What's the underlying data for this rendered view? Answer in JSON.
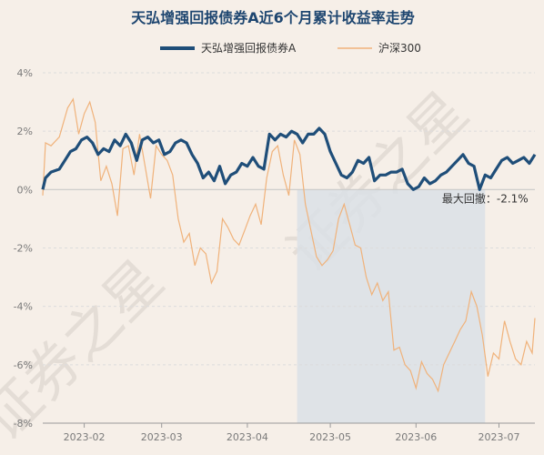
{
  "chart_data": {
    "type": "line",
    "title": "天弘增强回报债券A近6个月累计收益率走势",
    "watermark": "证券之星",
    "colors": {
      "fund": "#1f4e79",
      "index": "#f0b27a",
      "shade": "#dbe1e6",
      "background": "#f6efe8"
    },
    "ylim": [
      -8,
      4
    ],
    "yticks": [
      4,
      2,
      0,
      -2,
      -4,
      -6,
      -8
    ],
    "ytick_labels": [
      "4%",
      "2%",
      "0%",
      "-2%",
      "-4%",
      "-6%",
      "-8%"
    ],
    "xlim": [
      "2023-01-17",
      "2023-07-14"
    ],
    "xticks": [
      "2023-02-01",
      "2023-03-01",
      "2023-04-01",
      "2023-05-01",
      "2023-06-01",
      "2023-07-01"
    ],
    "xtick_labels": [
      "2023-02",
      "2023-03",
      "2023-04",
      "2023-05",
      "2023-06",
      "2023-07"
    ],
    "drawdown": {
      "label": "最大回撤：-2.1%",
      "start": "2023-04-19",
      "end": "2023-06-26"
    },
    "series": [
      {
        "name": "天弘增强回报债券A",
        "points": [
          [
            "2023-01-17",
            0.0
          ],
          [
            "2023-01-18",
            0.4
          ],
          [
            "2023-01-19",
            0.5
          ],
          [
            "2023-01-20",
            0.6
          ],
          [
            "2023-01-23",
            0.7
          ],
          [
            "2023-01-25",
            1.0
          ],
          [
            "2023-01-27",
            1.3
          ],
          [
            "2023-01-29",
            1.4
          ],
          [
            "2023-01-31",
            1.7
          ],
          [
            "2023-02-02",
            1.8
          ],
          [
            "2023-02-04",
            1.6
          ],
          [
            "2023-02-06",
            1.2
          ],
          [
            "2023-02-08",
            1.4
          ],
          [
            "2023-02-10",
            1.3
          ],
          [
            "2023-02-12",
            1.7
          ],
          [
            "2023-02-14",
            1.5
          ],
          [
            "2023-02-16",
            1.9
          ],
          [
            "2023-02-18",
            1.6
          ],
          [
            "2023-02-20",
            1.0
          ],
          [
            "2023-02-22",
            1.7
          ],
          [
            "2023-02-24",
            1.8
          ],
          [
            "2023-02-26",
            1.6
          ],
          [
            "2023-02-28",
            1.7
          ],
          [
            "2023-03-02",
            1.2
          ],
          [
            "2023-03-04",
            1.3
          ],
          [
            "2023-03-06",
            1.6
          ],
          [
            "2023-03-08",
            1.7
          ],
          [
            "2023-03-10",
            1.6
          ],
          [
            "2023-03-12",
            1.2
          ],
          [
            "2023-03-14",
            0.9
          ],
          [
            "2023-03-16",
            0.4
          ],
          [
            "2023-03-18",
            0.6
          ],
          [
            "2023-03-20",
            0.3
          ],
          [
            "2023-03-22",
            0.8
          ],
          [
            "2023-03-24",
            0.2
          ],
          [
            "2023-03-26",
            0.5
          ],
          [
            "2023-03-28",
            0.6
          ],
          [
            "2023-03-30",
            0.9
          ],
          [
            "2023-04-01",
            0.8
          ],
          [
            "2023-04-03",
            1.1
          ],
          [
            "2023-04-05",
            0.8
          ],
          [
            "2023-04-07",
            0.7
          ],
          [
            "2023-04-09",
            1.9
          ],
          [
            "2023-04-11",
            1.7
          ],
          [
            "2023-04-13",
            1.9
          ],
          [
            "2023-04-15",
            1.8
          ],
          [
            "2023-04-17",
            2.0
          ],
          [
            "2023-04-19",
            1.9
          ],
          [
            "2023-04-21",
            1.6
          ],
          [
            "2023-04-23",
            1.9
          ],
          [
            "2023-04-25",
            1.9
          ],
          [
            "2023-04-27",
            2.1
          ],
          [
            "2023-04-29",
            1.9
          ],
          [
            "2023-05-01",
            1.3
          ],
          [
            "2023-05-03",
            0.9
          ],
          [
            "2023-05-05",
            0.5
          ],
          [
            "2023-05-07",
            0.4
          ],
          [
            "2023-05-09",
            0.6
          ],
          [
            "2023-05-11",
            1.0
          ],
          [
            "2023-05-13",
            0.9
          ],
          [
            "2023-05-15",
            1.1
          ],
          [
            "2023-05-17",
            0.3
          ],
          [
            "2023-05-19",
            0.5
          ],
          [
            "2023-05-21",
            0.5
          ],
          [
            "2023-05-23",
            0.6
          ],
          [
            "2023-05-25",
            0.6
          ],
          [
            "2023-05-27",
            0.7
          ],
          [
            "2023-05-29",
            0.2
          ],
          [
            "2023-05-31",
            0.0
          ],
          [
            "2023-06-02",
            0.1
          ],
          [
            "2023-06-04",
            0.4
          ],
          [
            "2023-06-06",
            0.2
          ],
          [
            "2023-06-08",
            0.3
          ],
          [
            "2023-06-10",
            0.5
          ],
          [
            "2023-06-12",
            0.6
          ],
          [
            "2023-06-14",
            0.8
          ],
          [
            "2023-06-16",
            1.0
          ],
          [
            "2023-06-18",
            1.2
          ],
          [
            "2023-06-20",
            0.9
          ],
          [
            "2023-06-22",
            0.8
          ],
          [
            "2023-06-24",
            0.0
          ],
          [
            "2023-06-26",
            0.5
          ],
          [
            "2023-06-28",
            0.4
          ],
          [
            "2023-06-30",
            0.7
          ],
          [
            "2023-07-02",
            1.0
          ],
          [
            "2023-07-04",
            1.1
          ],
          [
            "2023-07-06",
            0.9
          ],
          [
            "2023-07-08",
            1.0
          ],
          [
            "2023-07-10",
            1.1
          ],
          [
            "2023-07-12",
            0.9
          ],
          [
            "2023-07-14",
            1.2
          ]
        ]
      },
      {
        "name": "沪深300",
        "points": [
          [
            "2023-01-17",
            -0.2
          ],
          [
            "2023-01-18",
            1.6
          ],
          [
            "2023-01-20",
            1.5
          ],
          [
            "2023-01-23",
            1.8
          ],
          [
            "2023-01-26",
            2.8
          ],
          [
            "2023-01-28",
            3.1
          ],
          [
            "2023-01-30",
            1.9
          ],
          [
            "2023-02-01",
            2.6
          ],
          [
            "2023-02-03",
            3.0
          ],
          [
            "2023-02-05",
            2.3
          ],
          [
            "2023-02-07",
            0.3
          ],
          [
            "2023-02-09",
            0.8
          ],
          [
            "2023-02-11",
            0.2
          ],
          [
            "2023-02-13",
            -0.9
          ],
          [
            "2023-02-15",
            1.4
          ],
          [
            "2023-02-17",
            1.5
          ],
          [
            "2023-02-19",
            0.5
          ],
          [
            "2023-02-21",
            1.9
          ],
          [
            "2023-02-23",
            0.8
          ],
          [
            "2023-02-25",
            -0.3
          ],
          [
            "2023-02-27",
            1.5
          ],
          [
            "2023-03-01",
            1.2
          ],
          [
            "2023-03-03",
            1.0
          ],
          [
            "2023-03-05",
            0.5
          ],
          [
            "2023-03-07",
            -1.0
          ],
          [
            "2023-03-09",
            -1.8
          ],
          [
            "2023-03-11",
            -1.5
          ],
          [
            "2023-03-13",
            -2.6
          ],
          [
            "2023-03-15",
            -2.0
          ],
          [
            "2023-03-17",
            -2.2
          ],
          [
            "2023-03-19",
            -3.2
          ],
          [
            "2023-03-21",
            -2.8
          ],
          [
            "2023-03-23",
            -1.0
          ],
          [
            "2023-03-25",
            -1.3
          ],
          [
            "2023-03-27",
            -1.7
          ],
          [
            "2023-03-29",
            -1.9
          ],
          [
            "2023-03-31",
            -1.4
          ],
          [
            "2023-04-02",
            -0.9
          ],
          [
            "2023-04-04",
            -0.5
          ],
          [
            "2023-04-06",
            -1.2
          ],
          [
            "2023-04-08",
            0.4
          ],
          [
            "2023-04-10",
            1.3
          ],
          [
            "2023-04-12",
            1.5
          ],
          [
            "2023-04-14",
            0.5
          ],
          [
            "2023-04-16",
            -0.2
          ],
          [
            "2023-04-18",
            1.7
          ],
          [
            "2023-04-20",
            1.2
          ],
          [
            "2023-04-22",
            -0.5
          ],
          [
            "2023-04-24",
            -1.4
          ],
          [
            "2023-04-26",
            -2.3
          ],
          [
            "2023-04-28",
            -2.6
          ],
          [
            "2023-04-30",
            -2.4
          ],
          [
            "2023-05-02",
            -2.1
          ],
          [
            "2023-05-04",
            -1.0
          ],
          [
            "2023-05-06",
            -0.5
          ],
          [
            "2023-05-08",
            -1.2
          ],
          [
            "2023-05-10",
            -1.9
          ],
          [
            "2023-05-12",
            -2.0
          ],
          [
            "2023-05-14",
            -3.0
          ],
          [
            "2023-05-16",
            -3.6
          ],
          [
            "2023-05-18",
            -3.2
          ],
          [
            "2023-05-20",
            -3.8
          ],
          [
            "2023-05-22",
            -3.5
          ],
          [
            "2023-05-24",
            -5.5
          ],
          [
            "2023-05-26",
            -5.4
          ],
          [
            "2023-05-28",
            -6.0
          ],
          [
            "2023-05-30",
            -6.2
          ],
          [
            "2023-06-01",
            -6.8
          ],
          [
            "2023-06-03",
            -5.9
          ],
          [
            "2023-06-05",
            -6.3
          ],
          [
            "2023-06-07",
            -6.5
          ],
          [
            "2023-06-09",
            -6.9
          ],
          [
            "2023-06-11",
            -6.0
          ],
          [
            "2023-06-13",
            -5.6
          ],
          [
            "2023-06-15",
            -5.2
          ],
          [
            "2023-06-17",
            -4.8
          ],
          [
            "2023-06-19",
            -4.5
          ],
          [
            "2023-06-21",
            -3.5
          ],
          [
            "2023-06-23",
            -4.0
          ],
          [
            "2023-06-25",
            -5.0
          ],
          [
            "2023-06-27",
            -6.4
          ],
          [
            "2023-06-29",
            -5.6
          ],
          [
            "2023-07-01",
            -5.8
          ],
          [
            "2023-07-03",
            -4.5
          ],
          [
            "2023-07-05",
            -5.2
          ],
          [
            "2023-07-07",
            -5.8
          ],
          [
            "2023-07-09",
            -6.0
          ],
          [
            "2023-07-11",
            -5.2
          ],
          [
            "2023-07-13",
            -5.6
          ],
          [
            "2023-07-14",
            -4.4
          ]
        ]
      }
    ]
  }
}
